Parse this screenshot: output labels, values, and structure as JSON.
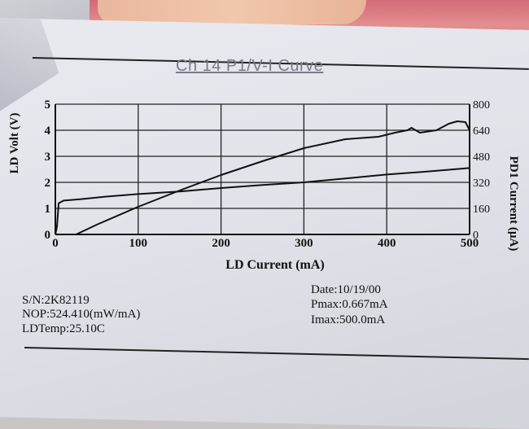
{
  "chart_data": {
    "type": "line",
    "title": "Ch 14 P1/V-I Curve",
    "xlabel": "LD Current (mA)",
    "ylabel": "LD Volt (V)",
    "y2label": "PD1 Current (µA)",
    "xlim": [
      0,
      500
    ],
    "ylim": [
      0,
      5
    ],
    "y2lim": [
      0,
      800
    ],
    "x_ticks": [
      "0",
      "100",
      "200",
      "300",
      "400",
      "500"
    ],
    "y_ticks": [
      "0",
      "1",
      "2",
      "3",
      "4",
      "5"
    ],
    "y2_ticks": [
      "0",
      "160",
      "320",
      "480",
      "640",
      "800"
    ],
    "grid": true,
    "series": [
      {
        "axis": "left",
        "x": [
          0,
          2,
          4,
          10,
          30,
          60,
          100,
          150,
          200,
          250,
          300,
          350,
          400,
          450,
          500
        ],
        "y": [
          0.0,
          0.3,
          1.2,
          1.3,
          1.35,
          1.45,
          1.55,
          1.65,
          1.78,
          1.9,
          2.0,
          2.15,
          2.3,
          2.42,
          2.55
        ]
      },
      {
        "axis": "right",
        "x": [
          25,
          50,
          100,
          150,
          200,
          250,
          300,
          350,
          390,
          410,
          425,
          430,
          440,
          460,
          475,
          485,
          495,
          500
        ],
        "y": [
          0,
          60,
          170,
          270,
          365,
          450,
          530,
          585,
          600,
          625,
          640,
          655,
          625,
          640,
          680,
          695,
          690,
          640
        ]
      }
    ]
  },
  "info": {
    "sn": "S/N:2K82119",
    "nop": "NOP:524.410(mW/mA)",
    "ldtemp": "LDTemp:25.10C",
    "date": "Date:10/19/00",
    "pmax": "Pmax:0.667mA",
    "imax": "Imax:500.0mA"
  }
}
